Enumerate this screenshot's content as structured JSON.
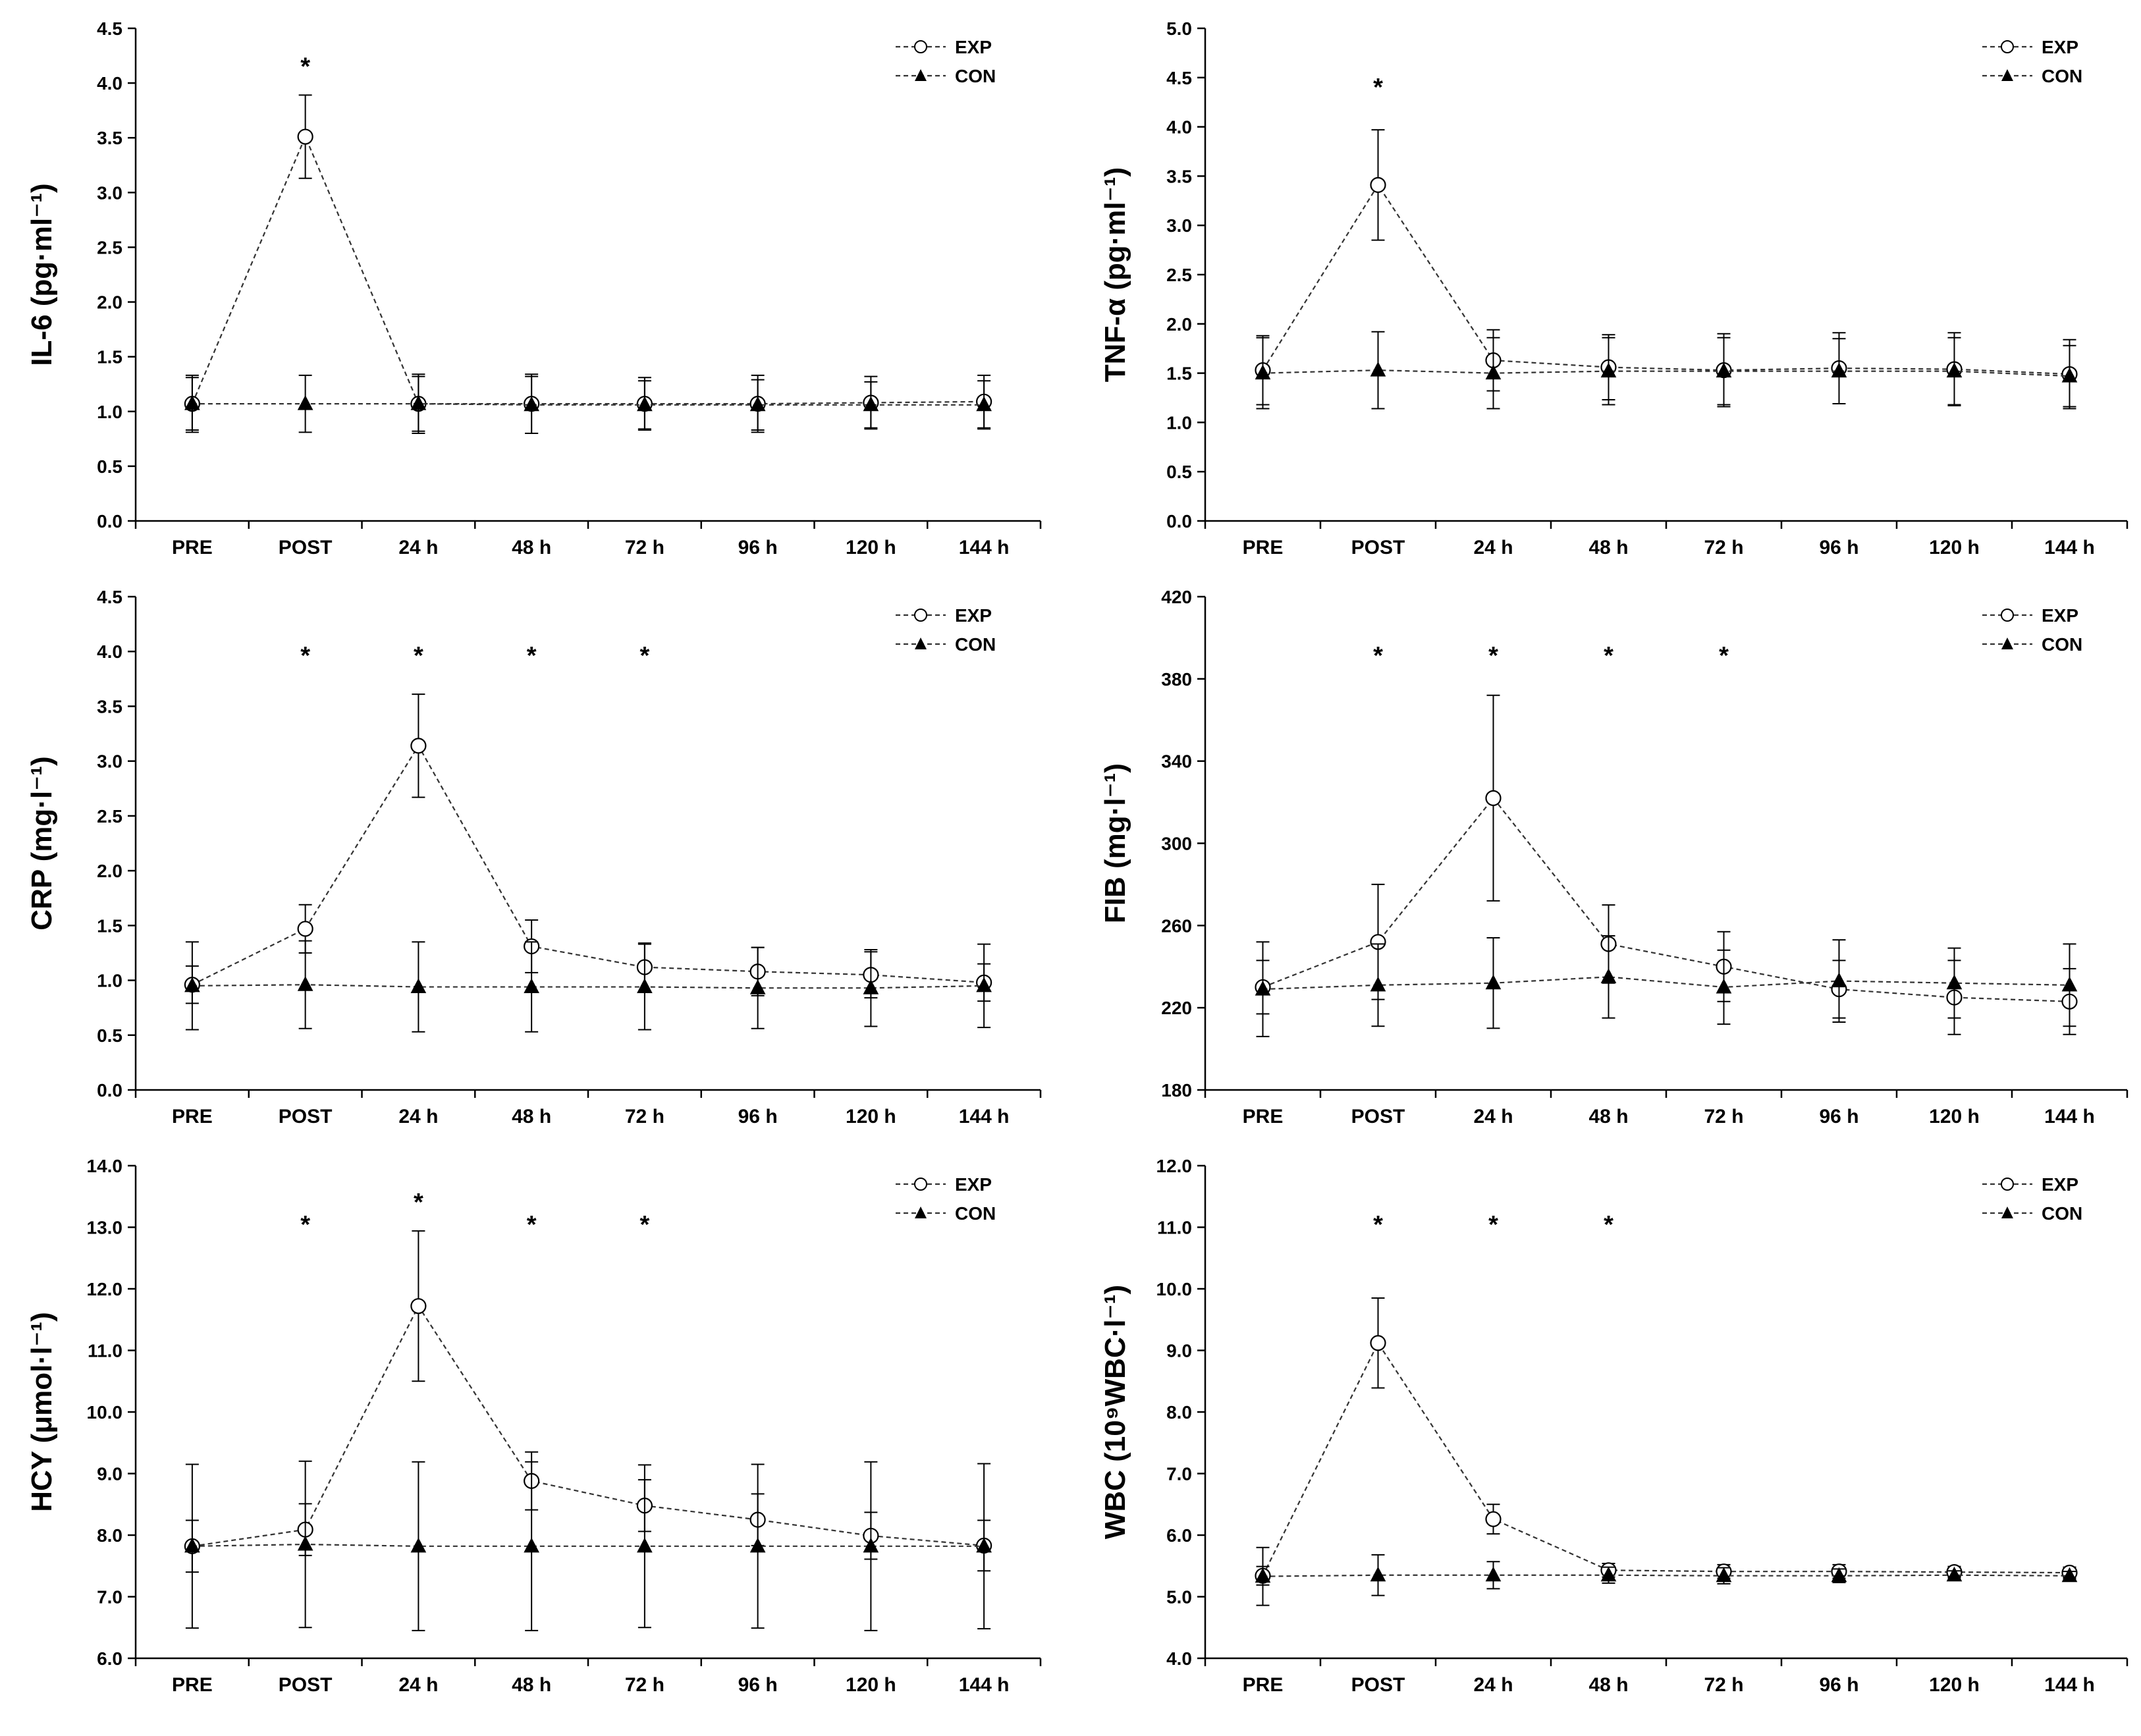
{
  "figure": {
    "panels": 6,
    "colors": {
      "axis": "#000000",
      "series_line": "#333333",
      "exp_marker_fill": "#ffffff",
      "con_marker_fill": "#000000"
    }
  },
  "chart_data": [
    {
      "type": "line",
      "ylabel": "IL-6 (pg·ml⁻¹)",
      "ylim": [
        0,
        4.5
      ],
      "ytick_step": 0.5,
      "ytick_decimals": 1,
      "categories": [
        "PRE",
        "POST",
        "24 h",
        "48 h",
        "72 h",
        "96 h",
        "120 h",
        "144 h"
      ],
      "significance": [
        "",
        "*",
        "",
        "",
        "",
        "",
        "",
        ""
      ],
      "legend": {
        "position": "top-right",
        "entries": [
          "EXP",
          "CON"
        ]
      },
      "series": [
        {
          "name": "EXP",
          "marker": "open-circle",
          "values": [
            1.07,
            3.51,
            1.07,
            1.07,
            1.07,
            1.07,
            1.08,
            1.09
          ],
          "err": [
            0.26,
            0.38,
            0.27,
            0.27,
            0.24,
            0.26,
            0.24,
            0.24
          ]
        },
        {
          "name": "CON",
          "marker": "filled-triangle",
          "values": [
            1.07,
            1.07,
            1.07,
            1.06,
            1.06,
            1.06,
            1.06,
            1.06
          ],
          "err": [
            0.24,
            0.26,
            0.25,
            0.26,
            0.22,
            0.23,
            0.21,
            0.22
          ]
        }
      ]
    },
    {
      "type": "line",
      "ylabel": "TNF-α (pg·ml⁻¹)",
      "ylim": [
        0,
        5.0
      ],
      "ytick_step": 0.5,
      "ytick_decimals": 1,
      "categories": [
        "PRE",
        "POST",
        "24 h",
        "48 h",
        "72 h",
        "96 h",
        "120 h",
        "144 h"
      ],
      "significance": [
        "",
        "*",
        "",
        "",
        "",
        "",
        "",
        ""
      ],
      "legend": {
        "position": "top-right",
        "entries": [
          "EXP",
          "CON"
        ]
      },
      "series": [
        {
          "name": "EXP",
          "marker": "open-circle",
          "values": [
            1.53,
            3.41,
            1.63,
            1.56,
            1.53,
            1.55,
            1.54,
            1.49
          ],
          "err": [
            0.35,
            0.56,
            0.31,
            0.33,
            0.37,
            0.36,
            0.37,
            0.35
          ]
        },
        {
          "name": "CON",
          "marker": "filled-triangle",
          "values": [
            1.5,
            1.53,
            1.5,
            1.52,
            1.52,
            1.52,
            1.52,
            1.47
          ],
          "err": [
            0.36,
            0.39,
            0.36,
            0.34,
            0.34,
            0.33,
            0.34,
            0.31
          ]
        }
      ]
    },
    {
      "type": "line",
      "ylabel": "CRP (mg·l⁻¹)",
      "ylim": [
        0,
        4.5
      ],
      "ytick_step": 0.5,
      "ytick_decimals": 1,
      "categories": [
        "PRE",
        "POST",
        "24 h",
        "48 h",
        "72 h",
        "96 h",
        "120 h",
        "144 h"
      ],
      "significance": [
        "",
        "*",
        "*",
        "*",
        "*",
        "",
        "",
        ""
      ],
      "legend": {
        "position": "top-right",
        "entries": [
          "EXP",
          "CON"
        ]
      },
      "series": [
        {
          "name": "EXP",
          "marker": "open-circle",
          "values": [
            0.96,
            1.47,
            3.14,
            1.31,
            1.12,
            1.08,
            1.05,
            0.98
          ],
          "err": [
            0.17,
            0.22,
            0.47,
            0.24,
            0.22,
            0.22,
            0.21,
            0.17
          ]
        },
        {
          "name": "CON",
          "marker": "filled-triangle",
          "values": [
            0.95,
            0.96,
            0.94,
            0.94,
            0.94,
            0.93,
            0.93,
            0.95
          ],
          "err": [
            0.4,
            0.4,
            0.41,
            0.41,
            0.39,
            0.37,
            0.35,
            0.38
          ]
        }
      ]
    },
    {
      "type": "line",
      "ylabel": "FIB (mg·l⁻¹)",
      "ylim": [
        180,
        420
      ],
      "ytick_step": 40,
      "ytick_decimals": 0,
      "categories": [
        "PRE",
        "POST",
        "24 h",
        "48 h",
        "72 h",
        "96 h",
        "120 h",
        "144 h"
      ],
      "significance": [
        "",
        "*",
        "*",
        "*",
        "*",
        "",
        "",
        ""
      ],
      "legend": {
        "position": "top-right",
        "entries": [
          "EXP",
          "CON"
        ]
      },
      "series": [
        {
          "name": "EXP",
          "marker": "open-circle",
          "values": [
            230,
            252,
            322,
            251,
            240,
            229,
            225,
            223
          ],
          "err": [
            13,
            28,
            50,
            19,
            17,
            14,
            18,
            16
          ]
        },
        {
          "name": "CON",
          "marker": "filled-triangle",
          "values": [
            229,
            231,
            232,
            235,
            230,
            233,
            232,
            231
          ],
          "err": [
            23,
            20,
            22,
            20,
            18,
            20,
            17,
            20
          ]
        }
      ]
    },
    {
      "type": "line",
      "ylabel": "HCY (μmol·l⁻¹)",
      "ylim": [
        6.0,
        14.0
      ],
      "ytick_step": 1.0,
      "ytick_decimals": 1,
      "categories": [
        "PRE",
        "POST",
        "24 h",
        "48 h",
        "72 h",
        "96 h",
        "120 h",
        "144 h"
      ],
      "significance": [
        "",
        "*",
        "*",
        "*",
        "*",
        "",
        "",
        ""
      ],
      "legend": {
        "position": "top-right",
        "entries": [
          "EXP",
          "CON"
        ]
      },
      "series": [
        {
          "name": "EXP",
          "marker": "open-circle",
          "values": [
            7.82,
            8.09,
            11.72,
            8.88,
            8.48,
            8.25,
            7.99,
            7.83
          ],
          "err": [
            0.42,
            0.42,
            1.22,
            0.47,
            0.42,
            0.42,
            0.38,
            0.41
          ]
        },
        {
          "name": "CON",
          "marker": "filled-triangle",
          "values": [
            7.82,
            7.85,
            7.82,
            7.82,
            7.82,
            7.82,
            7.82,
            7.82
          ],
          "err": [
            1.33,
            1.35,
            1.37,
            1.37,
            1.32,
            1.33,
            1.37,
            1.34
          ]
        }
      ]
    },
    {
      "type": "line",
      "ylabel": "WBC (10⁹WBC·l⁻¹)",
      "ylim": [
        4.0,
        12.0
      ],
      "ytick_step": 1.0,
      "ytick_decimals": 1,
      "categories": [
        "PRE",
        "POST",
        "24 h",
        "48 h",
        "72 h",
        "96 h",
        "120 h",
        "144 h"
      ],
      "significance": [
        "",
        "*",
        "*",
        "*",
        "",
        "",
        "",
        ""
      ],
      "legend": {
        "position": "top-right",
        "entries": [
          "EXP",
          "CON"
        ]
      },
      "series": [
        {
          "name": "EXP",
          "marker": "open-circle",
          "values": [
            5.34,
            9.12,
            6.26,
            5.43,
            5.41,
            5.41,
            5.4,
            5.39
          ],
          "err": [
            0.15,
            0.73,
            0.24,
            0.11,
            0.11,
            0.11,
            0.09,
            0.09
          ]
        },
        {
          "name": "CON",
          "marker": "filled-triangle",
          "values": [
            5.33,
            5.35,
            5.35,
            5.35,
            5.34,
            5.34,
            5.35,
            5.34
          ],
          "err": [
            0.47,
            0.33,
            0.22,
            0.13,
            0.13,
            0.11,
            0.07,
            0.07
          ]
        }
      ]
    }
  ]
}
